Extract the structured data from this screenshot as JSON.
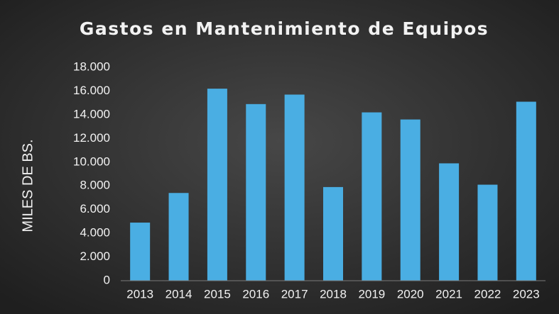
{
  "chart_data": {
    "type": "bar",
    "title": "Gastos en Mantenimiento de Equipos",
    "y_label": "MILES DE BS.",
    "categories": [
      "2013",
      "2014",
      "2015",
      "2016",
      "2017",
      "2018",
      "2019",
      "2020",
      "2021",
      "2022",
      "2023"
    ],
    "values": [
      4900,
      7400,
      16200,
      14900,
      15700,
      7900,
      14200,
      13600,
      9900,
      8100,
      15100
    ],
    "color": "#4aaee3",
    "ylim": [
      0,
      18000
    ],
    "yticks": [
      0,
      {
        "value": 2000,
        "label": "2.000"
      },
      {
        "value": 4000,
        "label": "4.000"
      },
      {
        "value": 6000,
        "label": "6.000"
      },
      {
        "value": 8000,
        "label": "8.000"
      },
      {
        "value": 10000,
        "label": "10.000"
      },
      {
        "value": 12000,
        "label": "12.000"
      },
      {
        "value": 14000,
        "label": "14.000"
      },
      {
        "value": 16000,
        "label": "16.000"
      },
      {
        "value": 18000,
        "label": "18.000"
      }
    ],
    "grid": false
  }
}
